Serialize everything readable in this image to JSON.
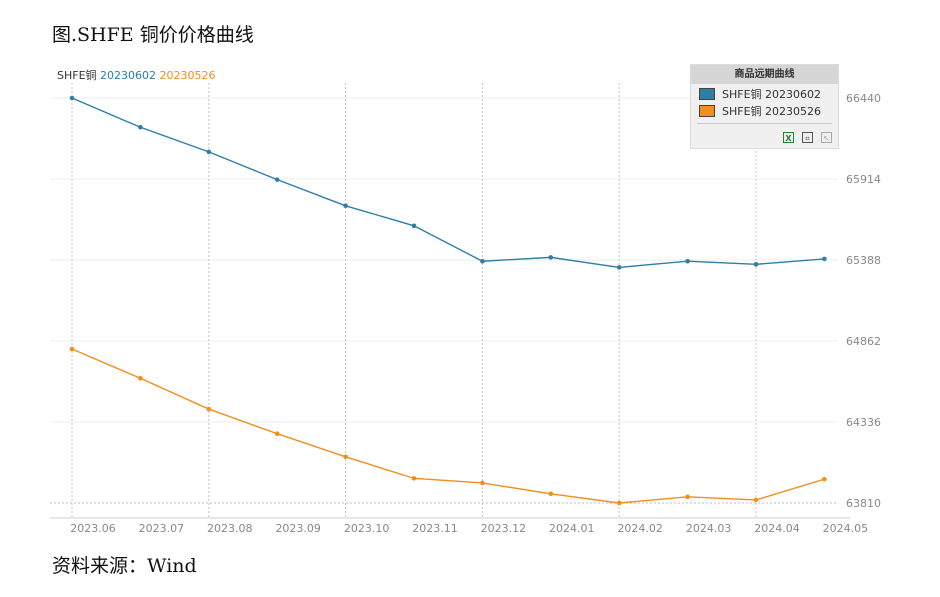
{
  "figure": {
    "title": "图.SHFE 铜价价格曲线",
    "source": "资料来源：Wind"
  },
  "legend_box": {
    "title": "商品远期曲线",
    "tools": [
      "excel-export-icon",
      "crop-icon",
      "expand-icon"
    ]
  },
  "chart_data": {
    "type": "line",
    "title": "",
    "top_label": {
      "prefix": "SHFE铜",
      "entries": [
        "20230602",
        "20230526"
      ]
    },
    "x": [
      "2023.06",
      "2023.07",
      "2023.08",
      "2023.09",
      "2023.10",
      "2023.11",
      "2023.12",
      "2024.01",
      "2024.02",
      "2024.03",
      "2024.04",
      "2024.05"
    ],
    "x_ticks": [
      "2023.06",
      "2023.07",
      "2023.08",
      "2023.09",
      "2023.10",
      "2023.11",
      "2023.12",
      "2024.01",
      "2024.02",
      "2024.03",
      "2024.04",
      "2024.05"
    ],
    "y_ticks": [
      66440,
      65914,
      65388,
      64862,
      64336,
      63810
    ],
    "ylim": [
      63810,
      66440
    ],
    "y_axis_position": "right",
    "grid": true,
    "legend_position": "top-right",
    "series": [
      {
        "name": "SHFE铜 20230602",
        "color": "#2e7ea6",
        "values": [
          66440,
          66250,
          66090,
          65910,
          65740,
          65610,
          65380,
          65405,
          65340,
          65380,
          65360,
          65395
        ]
      },
      {
        "name": "SHFE铜 20230526",
        "color": "#f28e1c",
        "values": [
          64810,
          64620,
          64420,
          64260,
          64110,
          63970,
          63940,
          63870,
          63810,
          63850,
          63830,
          63965
        ]
      }
    ]
  }
}
